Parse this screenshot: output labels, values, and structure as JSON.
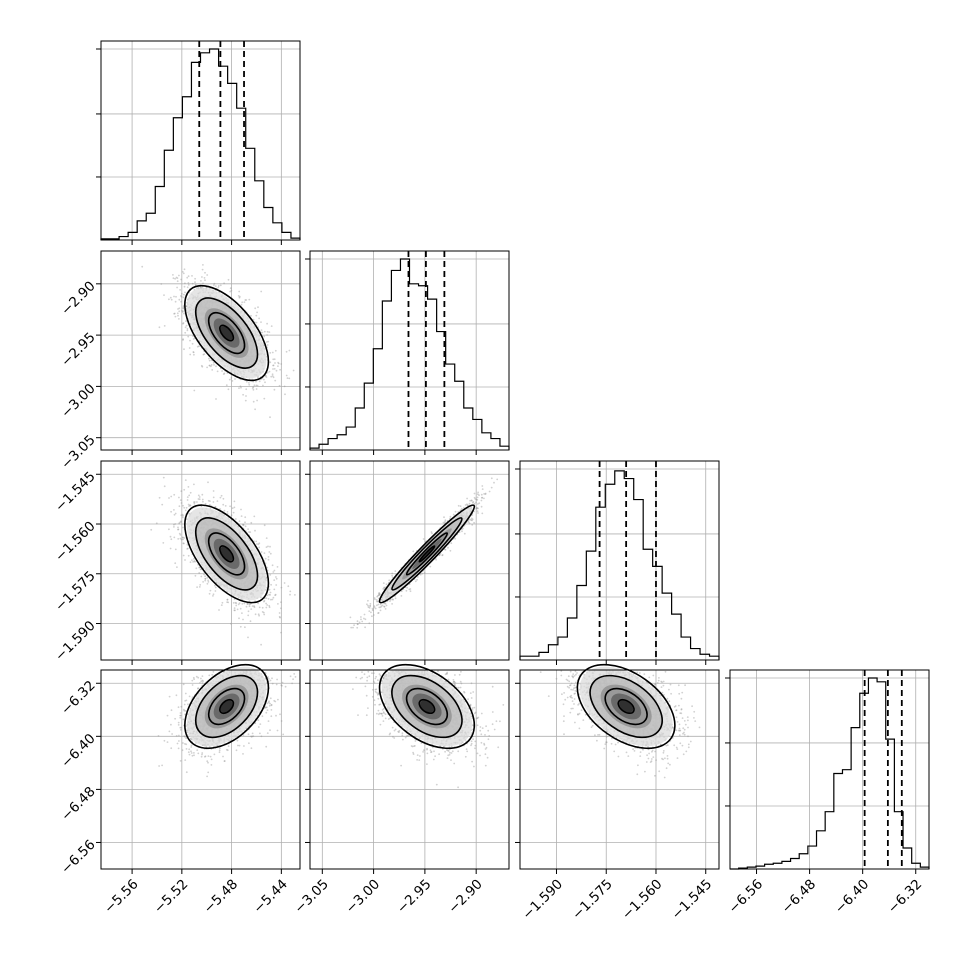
{
  "chart_data": {
    "type": "corner",
    "title": "",
    "parameters": [
      {
        "label": "",
        "mean": -5.484,
        "sigma": 0.016,
        "range": [
          -5.585,
          -5.425
        ],
        "ticks": [
          -5.56,
          -5.52,
          -5.48,
          -5.44
        ],
        "tick_labels": [
          "−5.56",
          "−5.52",
          "−5.48",
          "−5.44"
        ],
        "quantiles": [
          -5.506,
          -5.489,
          -5.47
        ],
        "histogram_counts": [
          0.006,
          0.006,
          0.018,
          0.04,
          0.1,
          0.14,
          0.28,
          0.47,
          0.64,
          0.75,
          0.93,
          0.98,
          1.0,
          0.91,
          0.82,
          0.69,
          0.48,
          0.31,
          0.17,
          0.09,
          0.04,
          0.01
        ]
      },
      {
        "label": "",
        "mean": -2.948,
        "sigma": 0.022,
        "range": [
          -3.062,
          -2.868
        ],
        "ticks": [
          -3.05,
          -3.0,
          -2.95,
          -2.9
        ],
        "tick_labels": [
          "−3.05",
          "−3.00",
          "−2.95",
          "−2.90"
        ],
        "quantiles": [
          -2.966,
          -2.949,
          -2.931
        ],
        "histogram_counts": [
          0.01,
          0.03,
          0.06,
          0.08,
          0.12,
          0.22,
          0.35,
          0.53,
          0.78,
          0.94,
          1.0,
          0.87,
          0.86,
          0.79,
          0.62,
          0.45,
          0.36,
          0.22,
          0.16,
          0.09,
          0.06,
          0.02
        ]
      },
      {
        "label": "",
        "mean": -1.569,
        "sigma": 0.007,
        "range": [
          -1.601,
          -1.541
        ],
        "ticks": [
          -1.59,
          -1.575,
          -1.56,
          -1.545
        ],
        "tick_labels": [
          "−1.590",
          "−1.575",
          "−1.560",
          "−1.545"
        ],
        "quantiles": [
          -1.577,
          -1.569,
          -1.56
        ],
        "histogram_counts": [
          0.02,
          0.02,
          0.04,
          0.08,
          0.12,
          0.22,
          0.39,
          0.57,
          0.8,
          0.92,
          0.99,
          0.95,
          0.84,
          0.58,
          0.49,
          0.35,
          0.24,
          0.12,
          0.06,
          0.03,
          0.02
        ]
      },
      {
        "label": "",
        "mean": -6.355,
        "sigma": 0.03,
        "range": [
          -6.6,
          -6.3
        ],
        "ticks": [
          -6.56,
          -6.48,
          -6.4,
          -6.32
        ],
        "tick_labels": [
          "−6.56",
          "−6.48",
          "−6.40",
          "−6.32"
        ],
        "quantiles": [
          -6.397,
          -6.362,
          -6.341
        ],
        "histogram_counts": [
          0.0,
          0.005,
          0.01,
          0.015,
          0.025,
          0.03,
          0.04,
          0.055,
          0.08,
          0.12,
          0.2,
          0.3,
          0.5,
          0.52,
          0.74,
          0.92,
          1.0,
          0.98,
          0.68,
          0.3,
          0.11,
          0.03,
          0.01
        ]
      }
    ],
    "correlations": {
      "1-0": -0.6,
      "2-0": -0.6,
      "2-1": 0.97,
      "3-0": 0.45,
      "3-1": -0.45,
      "3-2": -0.45
    },
    "grid": true,
    "samples_per_panel": 2000
  }
}
